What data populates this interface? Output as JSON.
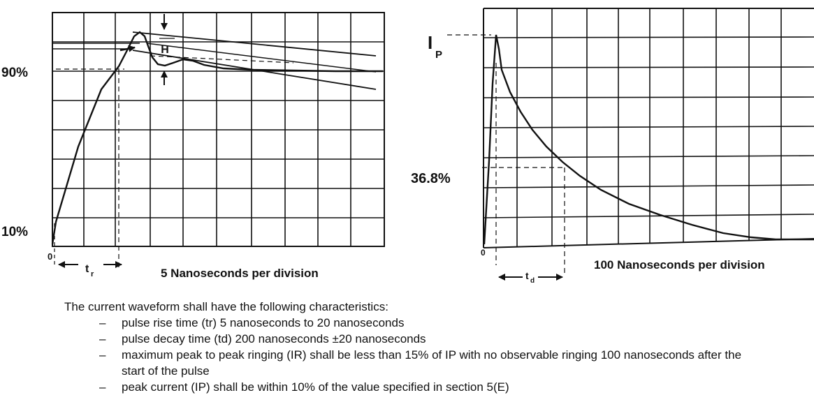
{
  "left_graph": {
    "label_90": "90%",
    "label_10": "10%",
    "zero": "0",
    "h_marker": "H",
    "tr_main": "t",
    "tr_sub": "r",
    "axis_caption": "5 Nanoseconds per division"
  },
  "right_graph": {
    "ip_main": "I",
    "ip_sub": "P",
    "label_368": "36.8%",
    "zero": "0",
    "td_main": "t",
    "td_sub": "d",
    "axis_caption": "100 Nanoseconds per division"
  },
  "notes": {
    "intro": "The current waveform shall have the following characteristics:",
    "items": [
      "pulse rise time (tr) 5 nanoseconds to 20 nanoseconds",
      "pulse decay time (td) 200 nanoseconds ±20 nanoseconds",
      "maximum peak to peak ringing (IR) shall be less than 15% of IP with no observable ringing 100 nanoseconds after the start of the pulse",
      "peak current (IP) shall be within 10% of the value specified in section 5(E)"
    ],
    "dash": "–"
  }
}
